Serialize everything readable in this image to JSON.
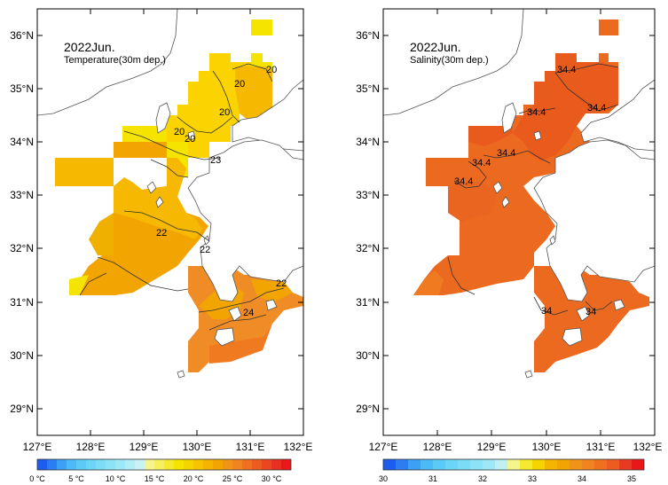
{
  "panels": [
    {
      "title": "2022Jun.",
      "subtitle": "Temperature(30m dep.)",
      "lat_ticks": [
        "36°N",
        "35°N",
        "34°N",
        "33°N",
        "32°N",
        "31°N",
        "30°N",
        "29°N"
      ],
      "lon_ticks": [
        "127°E",
        "128°E",
        "129°E",
        "130°E",
        "131°E",
        "132°E"
      ],
      "contour_labels": [
        "20",
        "20",
        "20",
        "20",
        "23",
        "22",
        "22",
        "22",
        "24"
      ],
      "colorbar_labels": [
        "0 °C",
        "5 °C",
        "10 °C",
        "15 °C",
        "20 °C",
        "25 °C",
        "30 °C"
      ]
    },
    {
      "title": "2022Jun.",
      "subtitle": "Salinity(30m dep.)",
      "lat_ticks": [
        "36°N",
        "35°N",
        "34°N",
        "33°N",
        "32°N",
        "31°N",
        "30°N",
        "29°N"
      ],
      "lon_ticks": [
        "127°E",
        "128°E",
        "129°E",
        "130°E",
        "131°E",
        "132°E"
      ],
      "contour_labels": [
        "34.4",
        "34.4",
        "34.4",
        "34.4",
        "34.4",
        "34.4",
        "34",
        "34"
      ],
      "colorbar_labels": [
        "30",
        "31",
        "32",
        "33",
        "34",
        "35"
      ]
    }
  ],
  "colors": {
    "temp_field": [
      "#f5e400",
      "#fbd400",
      "#f6b800",
      "#f2a400",
      "#f08c26",
      "#f07a20"
    ],
    "sal_field": [
      "#f07a20",
      "#ec6a20",
      "#e85b1c"
    ],
    "land_outline": "#555555"
  }
}
